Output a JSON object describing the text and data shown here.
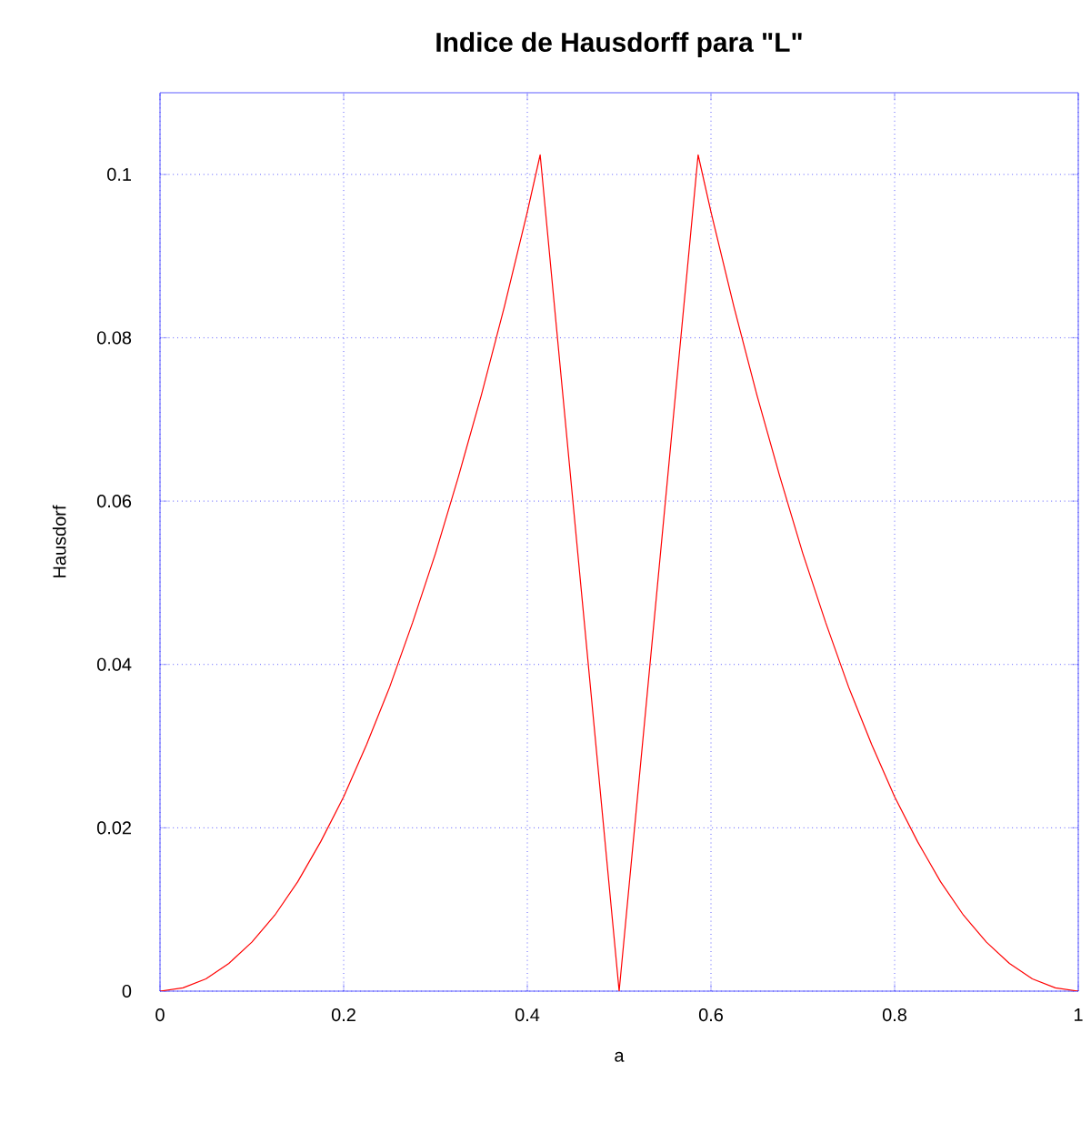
{
  "chart_data": {
    "type": "line",
    "title": "Indice de Hausdorff para  \"L\"",
    "xlabel": "a",
    "ylabel": "Hausdorf",
    "x": [
      0,
      0.025,
      0.05,
      0.075,
      0.1,
      0.125,
      0.15,
      0.175,
      0.2,
      0.225,
      0.25,
      0.275,
      0.3,
      0.325,
      0.35,
      0.375,
      0.4,
      0.414,
      0.5,
      0.586,
      0.6,
      0.625,
      0.65,
      0.675,
      0.7,
      0.725,
      0.75,
      0.775,
      0.8,
      0.825,
      0.85,
      0.875,
      0.9,
      0.925,
      0.95,
      0.975,
      1
    ],
    "series": [
      {
        "color": "#ff0000",
        "values": [
          0,
          0.0004,
          0.0015,
          0.0034,
          0.006,
          0.0093,
          0.0134,
          0.0183,
          0.0238,
          0.0302,
          0.0372,
          0.0451,
          0.0536,
          0.063,
          0.073,
          0.0838,
          0.0954,
          0.1024,
          0,
          0.1024,
          0.0954,
          0.0838,
          0.073,
          0.063,
          0.0536,
          0.0451,
          0.0372,
          0.0302,
          0.0238,
          0.0183,
          0.0134,
          0.0093,
          0.006,
          0.0034,
          0.0015,
          0.0004,
          0
        ]
      }
    ],
    "xlim": [
      0,
      1
    ],
    "ylim": [
      0,
      0.11
    ],
    "xticks": [
      0,
      0.2,
      0.4,
      0.6,
      0.8,
      1
    ],
    "yticks": [
      0,
      0.02,
      0.04,
      0.06,
      0.08,
      0.1
    ],
    "grid": true,
    "marker": "none",
    "line_style": "solid"
  }
}
